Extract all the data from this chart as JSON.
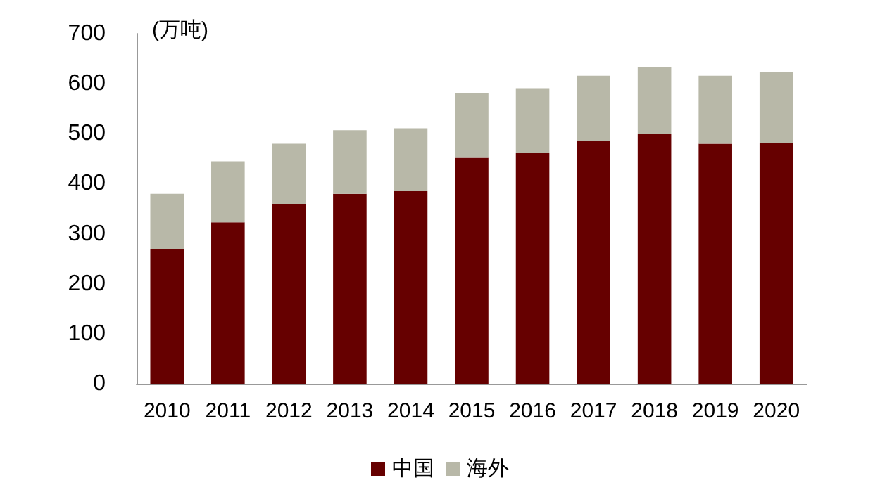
{
  "chart_data": {
    "type": "bar",
    "stacked": true,
    "ylabel": "(万吨)",
    "categories": [
      "2010",
      "2011",
      "2012",
      "2013",
      "2014",
      "2015",
      "2016",
      "2017",
      "2018",
      "2019",
      "2020"
    ],
    "series": [
      {
        "name": "中国",
        "color": "#660000",
        "values": [
          270,
          323,
          360,
          380,
          385,
          452,
          462,
          485,
          500,
          480,
          482
        ]
      },
      {
        "name": "海外",
        "color": "#b8b8a8",
        "values": [
          110,
          122,
          120,
          127,
          126,
          129,
          129,
          131,
          133,
          136,
          142
        ]
      }
    ],
    "ylim": [
      0,
      700
    ],
    "yticks": [
      0,
      100,
      200,
      300,
      400,
      500,
      600,
      700
    ],
    "grid": false,
    "legend": "bottom"
  }
}
